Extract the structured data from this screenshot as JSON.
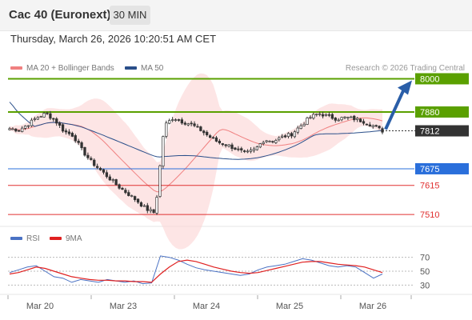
{
  "header": {
    "instrument": "Cac 40 (Euronext)",
    "interval": "30 MIN",
    "datetime": "Thursday, March 26, 2026 10:20:51 AM CET",
    "credit": "Research © 2026 Trading Central"
  },
  "legend": {
    "price": [
      {
        "label": "MA 20 + Bollinger Bands",
        "color": "#f08080"
      },
      {
        "label": "MA 50",
        "color": "#2a4f8a"
      }
    ],
    "rsi": [
      {
        "label": "RSI",
        "color": "#4a72c4"
      },
      {
        "label": "9MA",
        "color": "#e02020"
      }
    ]
  },
  "chart_data": [
    {
      "type": "candlestick",
      "x_labels": [
        "Mar 20",
        "Mar 23",
        "Mar 24",
        "Mar 25",
        "Mar 26"
      ],
      "ylim": [
        7490,
        8010
      ],
      "levels": [
        {
          "value": 8000,
          "label": "8000",
          "style": "resistance",
          "color": "#5aa000"
        },
        {
          "value": 7880,
          "label": "7880",
          "style": "resistance",
          "color": "#5aa000"
        },
        {
          "value": 7812,
          "label": "7812",
          "style": "current",
          "color": "#333333"
        },
        {
          "value": 7675,
          "label": "7675",
          "style": "pivot",
          "color": "#2a6fdb"
        },
        {
          "value": 7615,
          "label": "7615",
          "style": "support",
          "color": "#e03030"
        },
        {
          "value": 7510,
          "label": "7510",
          "style": "support",
          "color": "#e03030"
        }
      ],
      "arrow": {
        "from": 7812,
        "to": 8000,
        "direction": "up",
        "color": "#2a5ea8"
      },
      "close_path": [
        7820,
        7815,
        7835,
        7860,
        7875,
        7850,
        7810,
        7795,
        7740,
        7700,
        7670,
        7640,
        7610,
        7585,
        7560,
        7530,
        7515,
        7830,
        7860,
        7845,
        7835,
        7815,
        7790,
        7770,
        7760,
        7745,
        7730,
        7745,
        7780,
        7775,
        7790,
        7800,
        7830,
        7860,
        7875,
        7865,
        7855,
        7860,
        7855,
        7845,
        7830,
        7812
      ]
    },
    {
      "type": "line",
      "name": "RSI",
      "ylim": [
        20,
        80
      ],
      "ticks": [
        70,
        50,
        30
      ],
      "series": [
        {
          "name": "RSI",
          "values": [
            48,
            52,
            56,
            58,
            50,
            42,
            40,
            34,
            38,
            36,
            34,
            38,
            36,
            34,
            36,
            32,
            33,
            72,
            70,
            66,
            60,
            55,
            52,
            50,
            48,
            46,
            44,
            46,
            52,
            56,
            58,
            60,
            64,
            68,
            66,
            62,
            58,
            56,
            58,
            56,
            48,
            40,
            46
          ]
        },
        {
          "name": "9MA",
          "values": [
            46,
            48,
            52,
            56,
            54,
            50,
            46,
            42,
            40,
            38,
            37,
            37,
            36,
            36,
            35,
            35,
            34,
            46,
            56,
            64,
            66,
            64,
            60,
            56,
            53,
            50,
            48,
            47,
            48,
            51,
            54,
            57,
            60,
            63,
            64,
            64,
            62,
            60,
            59,
            58,
            56,
            52,
            48
          ]
        }
      ]
    }
  ]
}
